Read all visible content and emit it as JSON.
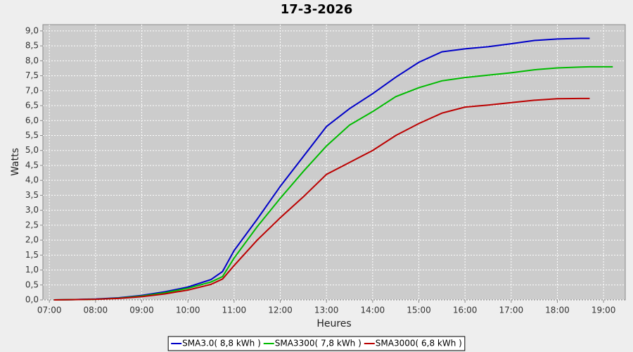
{
  "chart_data": {
    "type": "line",
    "title": "17-3-2026",
    "x_label": "Heures",
    "y_label": "Watts",
    "x": [
      7.1,
      7.5,
      8,
      8.5,
      9,
      9.5,
      10,
      10.5,
      10.75,
      11,
      11.5,
      12,
      12.5,
      13,
      13.5,
      14,
      14.5,
      15,
      15.5,
      16,
      16.5,
      17,
      17.5,
      18,
      18.5,
      18.7,
      19.2
    ],
    "series": [
      {
        "name": "SMA3.0( 8,8 kWh )",
        "color": "#0000c8",
        "values": [
          0,
          0.01,
          0.03,
          0.07,
          0.15,
          0.27,
          0.43,
          0.68,
          0.95,
          1.65,
          2.7,
          3.8,
          4.8,
          5.8,
          6.4,
          6.9,
          7.45,
          7.95,
          8.3,
          8.4,
          8.47,
          8.57,
          8.68,
          8.73,
          8.75,
          8.75,
          null
        ]
      },
      {
        "name": "SMA3300( 7,8 kWh )",
        "color": "#00bb00",
        "values": [
          0,
          0.01,
          0.02,
          0.06,
          0.13,
          0.24,
          0.39,
          0.6,
          0.78,
          1.4,
          2.45,
          3.4,
          4.3,
          5.15,
          5.85,
          6.3,
          6.8,
          7.1,
          7.33,
          7.44,
          7.52,
          7.6,
          7.7,
          7.76,
          7.79,
          7.8,
          7.8
        ]
      },
      {
        "name": "SMA3000( 6,8 kWh )",
        "color": "#bb0000",
        "values": [
          0,
          0.01,
          0.02,
          0.05,
          0.11,
          0.2,
          0.33,
          0.52,
          0.7,
          1.15,
          2.0,
          2.75,
          3.45,
          4.2,
          4.6,
          5.0,
          5.5,
          5.9,
          6.25,
          6.45,
          6.52,
          6.6,
          6.68,
          6.73,
          6.74,
          6.74,
          null
        ]
      }
    ],
    "xlim": [
      6.86,
      19.47
    ],
    "xticks": [
      {
        "value": 7,
        "label": "07:00"
      },
      {
        "value": 8,
        "label": "08:00"
      },
      {
        "value": 9,
        "label": "09:00"
      },
      {
        "value": 10,
        "label": "10:00"
      },
      {
        "value": 11,
        "label": "11:00"
      },
      {
        "value": 12,
        "label": "12:00"
      },
      {
        "value": 13,
        "label": "13:00"
      },
      {
        "value": 14,
        "label": "14:00"
      },
      {
        "value": 15,
        "label": "15:00"
      },
      {
        "value": 16,
        "label": "16:00"
      },
      {
        "value": 17,
        "label": "17:00"
      },
      {
        "value": 18,
        "label": "18:00"
      },
      {
        "value": 19,
        "label": "19:00"
      }
    ],
    "ylim": [
      0,
      9.21
    ],
    "yticks": [
      {
        "value": 0,
        "label": "0,0"
      },
      {
        "value": 0.5,
        "label": "0,5"
      },
      {
        "value": 1,
        "label": "1,0"
      },
      {
        "value": 1.5,
        "label": "1,5"
      },
      {
        "value": 2,
        "label": "2,0"
      },
      {
        "value": 2.5,
        "label": "2,5"
      },
      {
        "value": 3,
        "label": "3,0"
      },
      {
        "value": 3.5,
        "label": "3,5"
      },
      {
        "value": 4,
        "label": "4,0"
      },
      {
        "value": 4.5,
        "label": "4,5"
      },
      {
        "value": 5,
        "label": "5,0"
      },
      {
        "value": 5.5,
        "label": "5,5"
      },
      {
        "value": 6,
        "label": "6,0"
      },
      {
        "value": 6.5,
        "label": "6,5"
      },
      {
        "value": 7,
        "label": "7,0"
      },
      {
        "value": 7.5,
        "label": "7,5"
      },
      {
        "value": 8,
        "label": "8,0"
      },
      {
        "value": 8.5,
        "label": "8,5"
      },
      {
        "value": 9,
        "label": "9,0"
      }
    ],
    "grid": true,
    "legend": "bottom",
    "plot_background": "#cccccc"
  }
}
